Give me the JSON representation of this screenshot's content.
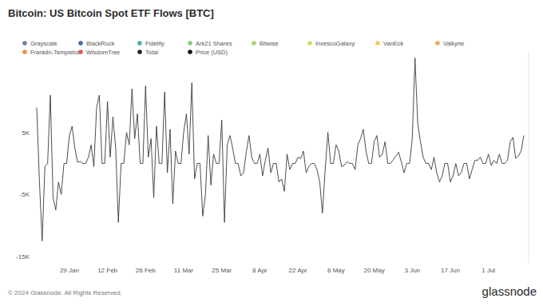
{
  "chart_data": {
    "type": "line",
    "title": "Bitcoin: US Bitcoin Spot ETF Flows [BTC]",
    "legend_items": [
      {
        "name": "Grayscale",
        "color": "#6f7fa6"
      },
      {
        "name": "BlackRock",
        "color": "#3d6aa0"
      },
      {
        "name": "Fidelity",
        "color": "#45b0a8"
      },
      {
        "name": "Ark21 Shares",
        "color": "#86c97c"
      },
      {
        "name": "Bitwise",
        "color": "#a8d46c"
      },
      {
        "name": "InvescoGalaxy",
        "color": "#d3d86a"
      },
      {
        "name": "VanEck",
        "color": "#f2cb5c"
      },
      {
        "name": "Valkyrie",
        "color": "#f5a858"
      },
      {
        "name": "Franklin-Templeton",
        "color": "#f28b4c"
      },
      {
        "name": "WisdomTree",
        "color": "#e0584a"
      },
      {
        "name": "Total",
        "color": "#222222"
      },
      {
        "name": "Price (USD)",
        "color": "#111111"
      }
    ],
    "categories": [
      null,
      null,
      null,
      null,
      null,
      null,
      null,
      null,
      null,
      null,
      null,
      null,
      "29 Jan",
      null,
      null,
      null,
      null,
      null,
      null,
      null,
      null,
      null,
      null,
      null,
      null,
      null,
      "12 Feb",
      null,
      null,
      null,
      null,
      null,
      null,
      null,
      null,
      null,
      null,
      null,
      null,
      null,
      "26 Feb",
      null,
      null,
      null,
      null,
      null,
      null,
      null,
      null,
      null,
      null,
      null,
      null,
      null,
      "11 Mar",
      null,
      null,
      null,
      null,
      null,
      null,
      null,
      null,
      null,
      null,
      null,
      null,
      null,
      "25 Mar",
      null,
      null,
      null,
      null,
      null,
      null,
      null,
      null,
      null,
      null,
      null,
      null,
      null,
      "8 Apr",
      null,
      null,
      null,
      null,
      null,
      null,
      null,
      null,
      null,
      null,
      null,
      null,
      null,
      "22 Apr",
      null,
      null,
      null,
      null,
      null,
      null,
      null,
      null,
      null,
      null,
      null,
      null,
      null,
      "6 May",
      null,
      null,
      null,
      null,
      null,
      null,
      null,
      null,
      null,
      null,
      null,
      null,
      null,
      "20 May",
      null,
      null,
      null,
      null,
      null,
      null,
      null,
      null,
      null,
      null,
      null,
      null,
      null,
      "3 Jun",
      null,
      null,
      null,
      null,
      null,
      null,
      null,
      null,
      null,
      null,
      null,
      null,
      null,
      "17 Jun",
      null,
      null,
      null,
      null,
      null,
      null,
      null,
      null,
      null,
      null,
      null,
      null,
      null,
      "1 Jul",
      null,
      null,
      null,
      null,
      null,
      null,
      null,
      null,
      null,
      null,
      null,
      null,
      null
    ],
    "series": [
      {
        "color": "#3a3a3a",
        "values": [
          9000,
          -3000,
          -12500,
          -500,
          0,
          11000,
          -5500,
          -7500,
          -3000,
          -5000,
          0,
          0,
          4500,
          6000,
          2500,
          200,
          300,
          0,
          0,
          1000,
          3000,
          -500,
          9000,
          11000,
          0,
          0,
          10000,
          1000,
          7500,
          2500,
          -9500,
          0,
          0,
          5000,
          3000,
          12000,
          4000,
          8000,
          0,
          0,
          12500,
          1000,
          4000,
          -5500,
          6000,
          0,
          0,
          11500,
          -1500,
          5500,
          -6500,
          2000,
          0,
          0,
          5000,
          8000,
          1500,
          13000,
          -2500,
          0,
          0,
          -8500,
          -5000,
          4500,
          -3500,
          1500,
          0,
          0,
          7000,
          -9500,
          3000,
          4500,
          2500,
          0,
          0,
          -2000,
          -1500,
          1800,
          4500,
          1000,
          0,
          0,
          1500,
          -2000,
          500,
          2500,
          -1500,
          0,
          0,
          -3000,
          -2500,
          -4500,
          1500,
          -1000,
          0,
          0,
          1000,
          800,
          2000,
          -1500,
          -500,
          0,
          0,
          -1000,
          -3000,
          -8000,
          -1000,
          5000,
          0,
          0,
          3000,
          2000,
          -500,
          -300,
          300,
          0,
          0,
          -1000,
          3000,
          4000,
          5500,
          2000,
          0,
          0,
          3500,
          4500,
          1000,
          1500,
          3500,
          0,
          0,
          600,
          1200,
          1800,
          200,
          -1500,
          0,
          0,
          4000,
          17000,
          6500,
          3500,
          1000,
          0,
          0,
          -1000,
          1000,
          -1500,
          -3000,
          -2000,
          0,
          0,
          -3000,
          -2000,
          0,
          -2000,
          -1500,
          0,
          0,
          -2500,
          -1000,
          500,
          500,
          1000,
          0,
          0,
          1500,
          -300,
          500,
          0,
          1500,
          0,
          0,
          500,
          3500,
          4200,
          800,
          1200,
          2000,
          4500
        ]
      }
    ],
    "ylim": [
      -16000,
      18000
    ],
    "yticks": [
      {
        "value": -15000,
        "label": "-15K"
      },
      {
        "value": -5000,
        "label": "-5K"
      },
      {
        "value": 5000,
        "label": "5K"
      }
    ],
    "grid": false,
    "footer": {
      "copyright": "© 2024 Glassnode. All Rights Reserved.",
      "logo": "glassnode"
    }
  }
}
